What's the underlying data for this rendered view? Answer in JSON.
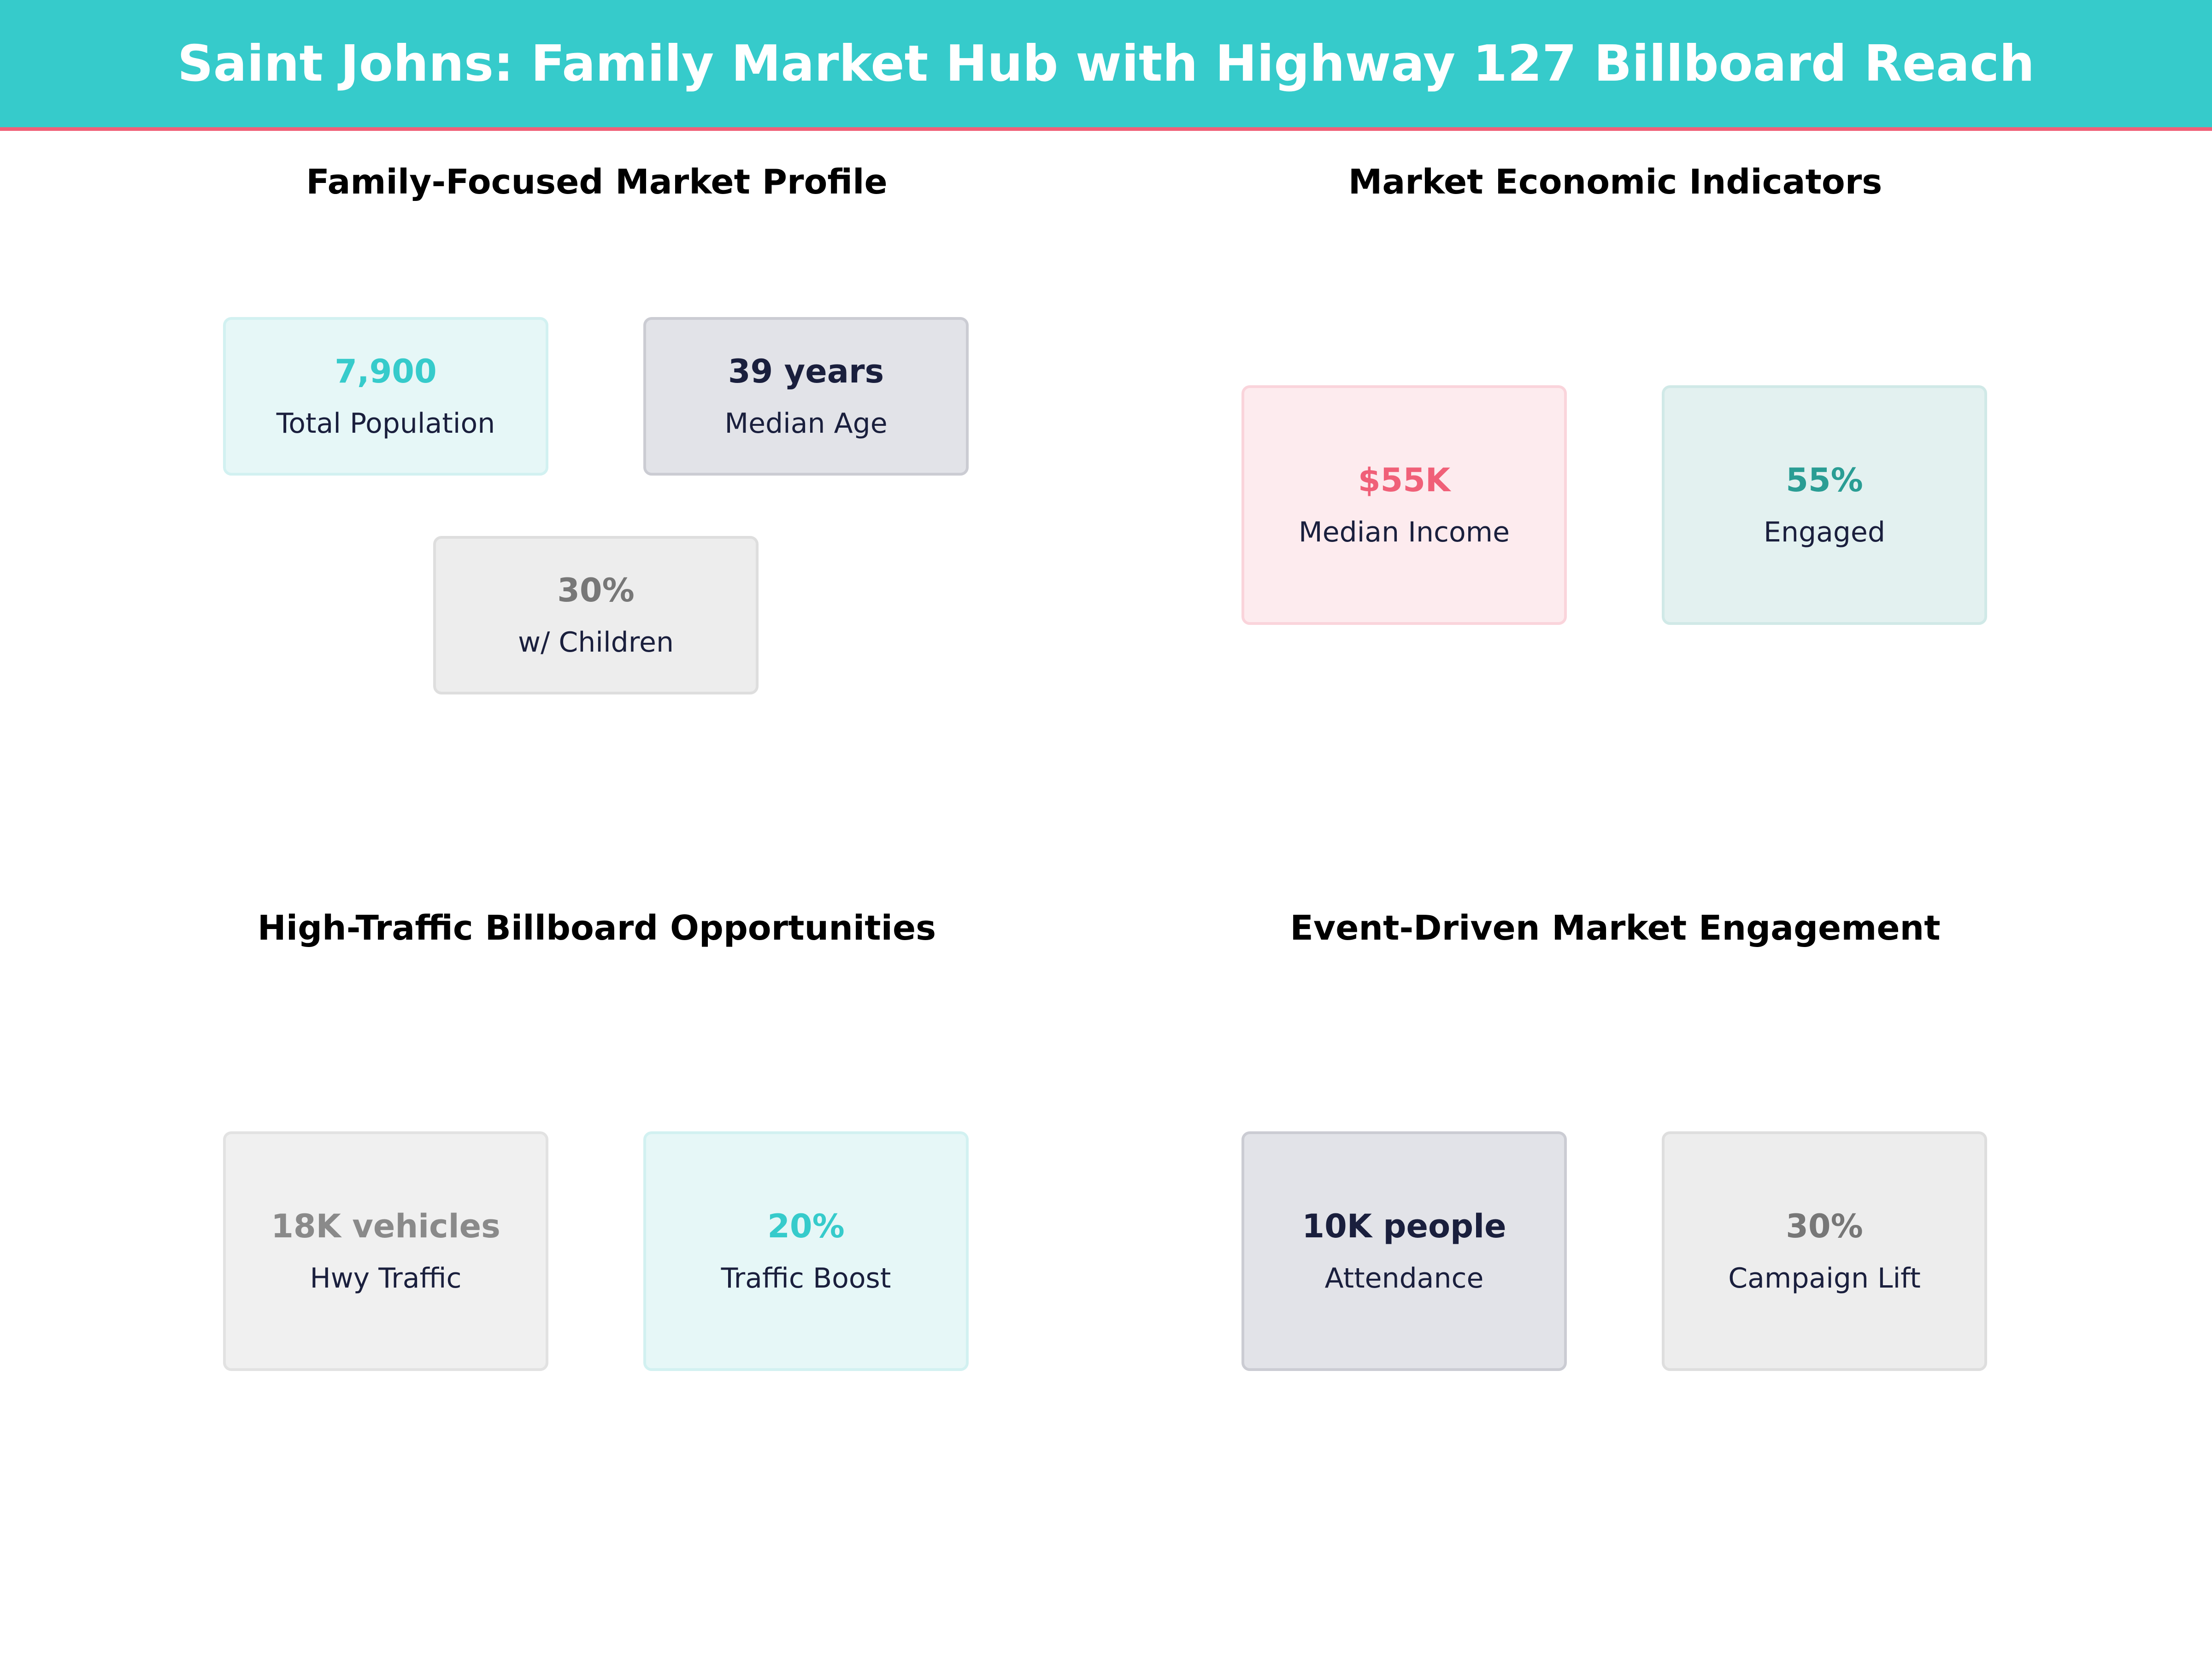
{
  "header": {
    "title": "Saint Johns: Family Market Hub with Highway 127 Billboard Reach"
  },
  "colors": {
    "accent": "#36cbcb",
    "highlight": "#f06078",
    "navy": "#1a1f3d",
    "dark_teal": "#2a9d94"
  },
  "sections": [
    {
      "title": "Family-Focused Market Profile",
      "cards": [
        {
          "value": "7,900",
          "label": "Total Population"
        },
        {
          "value": "39 years",
          "label": "Median Age"
        },
        {
          "value": "30%",
          "label": "w/ Children"
        }
      ]
    },
    {
      "title": "Market Economic Indicators",
      "cards": [
        {
          "value": "$55K",
          "label": "Median Income"
        },
        {
          "value": "55%",
          "label": "Engaged"
        }
      ]
    },
    {
      "title": "High-Traffic Billboard Opportunities",
      "cards": [
        {
          "value": "18K vehicles",
          "label": "Hwy Traffic"
        },
        {
          "value": "20%",
          "label": "Traffic Boost"
        }
      ]
    },
    {
      "title": "Event-Driven Market Engagement",
      "cards": [
        {
          "value": "10K people",
          "label": "Attendance"
        },
        {
          "value": "30%",
          "label": "Campaign Lift"
        }
      ]
    }
  ]
}
